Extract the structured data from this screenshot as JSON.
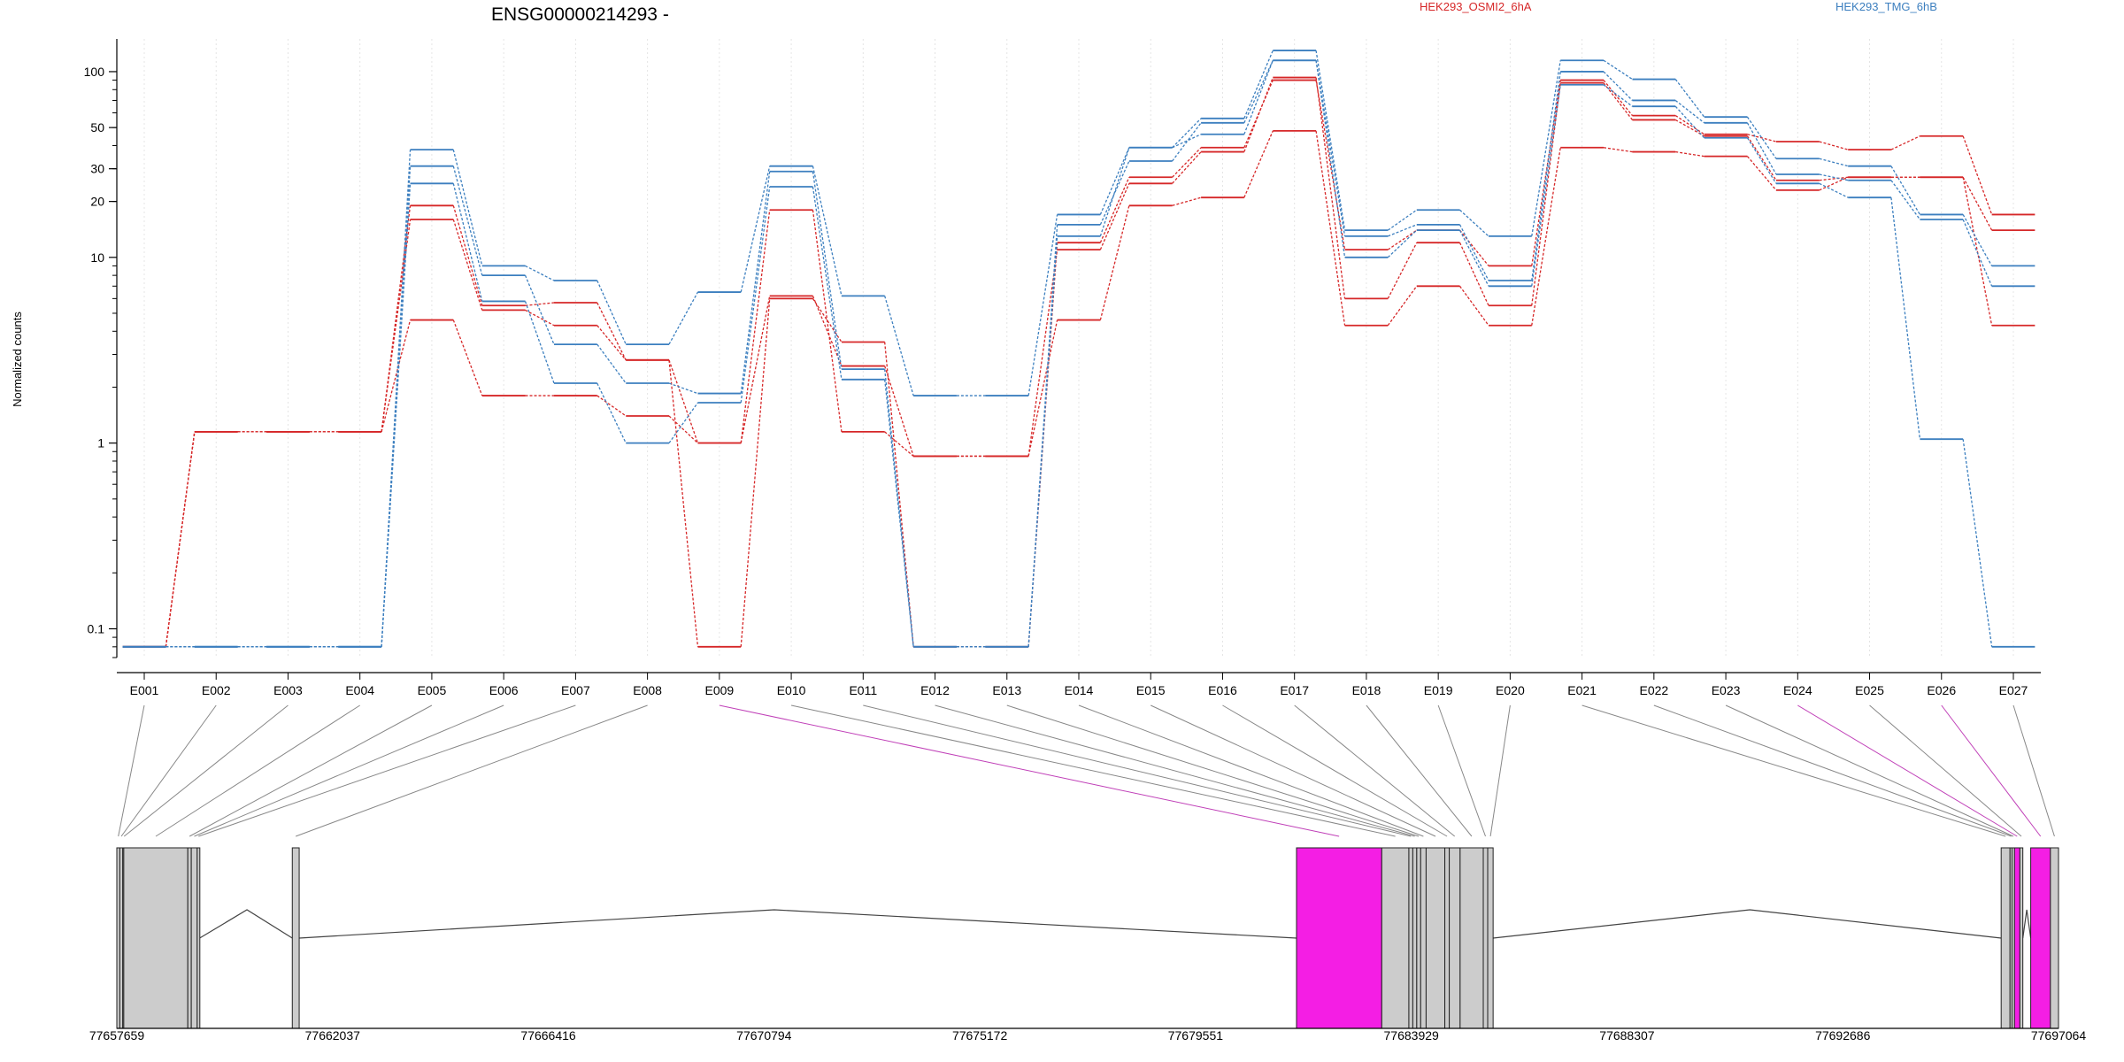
{
  "chart_data": {
    "type": "line",
    "title": "ENSG00000214293 -",
    "ylabel": "Normalized counts",
    "yscale": "log",
    "ylim": [
      0.07,
      150
    ],
    "yticks": [
      0.1,
      1,
      10,
      20,
      30,
      50,
      100
    ],
    "grid": "vertical dotted per exon",
    "legend": [
      {
        "name": "HEK293_OSMI2_6hA",
        "color": "#d62728"
      },
      {
        "name": "HEK293_TMG_6hB",
        "color": "#3c7fbf"
      }
    ],
    "categories": [
      "E001",
      "E002",
      "E003",
      "E004",
      "E005",
      "E006",
      "E007",
      "E008",
      "E009",
      "E010",
      "E011",
      "E012",
      "E013",
      "E014",
      "E015",
      "E016",
      "E017",
      "E018",
      "E019",
      "E020",
      "E021",
      "E022",
      "E023",
      "E024",
      "E025",
      "E026",
      "E027"
    ],
    "series": [
      {
        "group": "HEK293_OSMI2_6hA",
        "color": "#d62728",
        "values": [
          0.08,
          1.15,
          1.15,
          1.15,
          19,
          5.5,
          5.7,
          2.8,
          0.08,
          6,
          3.5,
          0.08,
          0.08,
          12,
          27,
          39,
          90,
          11,
          14,
          9,
          90,
          58,
          46,
          42,
          38,
          45,
          17
        ]
      },
      {
        "group": "HEK293_OSMI2_6hA",
        "color": "#d62728",
        "values": [
          0.08,
          1.15,
          1.15,
          1.15,
          16,
          5.2,
          4.3,
          2.8,
          1.0,
          6.2,
          2.6,
          0.85,
          0.85,
          11,
          25,
          37,
          93,
          6,
          12,
          5.5,
          87,
          55,
          45,
          26,
          27,
          27,
          14
        ]
      },
      {
        "group": "HEK293_OSMI2_6hA",
        "color": "#d62728",
        "values": [
          0.08,
          1.15,
          1.15,
          1.15,
          4.6,
          1.8,
          1.8,
          1.4,
          1.0,
          18,
          1.15,
          0.85,
          0.85,
          4.6,
          19,
          21,
          48,
          4.3,
          7,
          4.3,
          39,
          37,
          35,
          23,
          27,
          27,
          4.3
        ]
      },
      {
        "group": "HEK293_TMG_6hB",
        "color": "#3c7fbf",
        "values": [
          0.08,
          0.08,
          0.08,
          0.08,
          38,
          9,
          7.5,
          3.4,
          6.5,
          31,
          6.2,
          1.8,
          1.8,
          17,
          39,
          56,
          130,
          14,
          18,
          13,
          115,
          91,
          57,
          34,
          31,
          17,
          9
        ]
      },
      {
        "group": "HEK293_TMG_6hB",
        "color": "#3c7fbf",
        "values": [
          0.08,
          0.08,
          0.08,
          0.08,
          31,
          8,
          3.4,
          2.1,
          1.85,
          29,
          2.5,
          0.08,
          0.08,
          15,
          33,
          53,
          115,
          13,
          15,
          7.5,
          100,
          70,
          53,
          28,
          26,
          16,
          7
        ]
      },
      {
        "group": "HEK293_TMG_6hB",
        "color": "#3c7fbf",
        "values": [
          0.08,
          0.08,
          0.08,
          0.08,
          25,
          5.8,
          2.1,
          1.0,
          1.65,
          24,
          2.2,
          0.08,
          0.08,
          13,
          39,
          46,
          115,
          10,
          14,
          7,
          85,
          65,
          44,
          25,
          21,
          1.05,
          0.08
        ]
      }
    ],
    "gene_model": {
      "coordinate_ticks": [
        "77657659",
        "77662037",
        "77666416",
        "77670794",
        "77675172",
        "77679551",
        "77683929",
        "77688307",
        "77692686",
        "77697064"
      ],
      "coord_range": [
        77657659,
        77697064
      ],
      "exons": [
        {
          "id": "E001",
          "start": 77657659,
          "end": 77657720,
          "highlight": false
        },
        {
          "id": "E002",
          "start": 77657720,
          "end": 77657780,
          "highlight": false
        },
        {
          "id": "E003",
          "start": 77657780,
          "end": 77657800,
          "highlight": false
        },
        {
          "id": "E004",
          "start": 77657800,
          "end": 77659100,
          "highlight": false
        },
        {
          "id": "E005",
          "start": 77659100,
          "end": 77659170,
          "highlight": false
        },
        {
          "id": "E006",
          "start": 77659170,
          "end": 77659290,
          "highlight": false
        },
        {
          "id": "E007",
          "start": 77659290,
          "end": 77659340,
          "highlight": false
        },
        {
          "id": "E008",
          "start": 77661220,
          "end": 77661360,
          "highlight": false
        },
        {
          "id": "E009",
          "start": 77681600,
          "end": 77683330,
          "highlight": true
        },
        {
          "id": "E010",
          "start": 77683330,
          "end": 77683880,
          "highlight": false
        },
        {
          "id": "E011",
          "start": 77683880,
          "end": 77683960,
          "highlight": false
        },
        {
          "id": "E012",
          "start": 77683960,
          "end": 77684040,
          "highlight": false
        },
        {
          "id": "E013",
          "start": 77684040,
          "end": 77684120,
          "highlight": false
        },
        {
          "id": "E014",
          "start": 77684120,
          "end": 77684230,
          "highlight": false
        },
        {
          "id": "E015",
          "start": 77684230,
          "end": 77684610,
          "highlight": false
        },
        {
          "id": "E016",
          "start": 77684610,
          "end": 77684700,
          "highlight": false
        },
        {
          "id": "E017",
          "start": 77684700,
          "end": 77684920,
          "highlight": false
        },
        {
          "id": "E018",
          "start": 77684920,
          "end": 77685390,
          "highlight": false
        },
        {
          "id": "E019",
          "start": 77685390,
          "end": 77685480,
          "highlight": false
        },
        {
          "id": "E020",
          "start": 77685480,
          "end": 77685590,
          "highlight": false
        },
        {
          "id": "E021",
          "start": 77695900,
          "end": 77696080,
          "highlight": false
        },
        {
          "id": "E022",
          "start": 77696080,
          "end": 77696120,
          "highlight": false
        },
        {
          "id": "E023",
          "start": 77696120,
          "end": 77696170,
          "highlight": false
        },
        {
          "id": "E024",
          "start": 77696170,
          "end": 77696280,
          "highlight": true
        },
        {
          "id": "E025",
          "start": 77696280,
          "end": 77696340,
          "highlight": false
        },
        {
          "id": "E026",
          "start": 77696500,
          "end": 77696900,
          "highlight": true
        },
        {
          "id": "E027",
          "start": 77696900,
          "end": 77697064,
          "highlight": false
        }
      ],
      "introns": [
        {
          "from": 77659340,
          "to": 77661220,
          "peak": 77660300
        },
        {
          "from": 77661360,
          "to": 77681600,
          "peak": 77671000
        },
        {
          "from": 77685590,
          "to": 77695900,
          "peak": 77690800
        },
        {
          "from": 77696340,
          "to": 77696500,
          "peak": 77696420
        }
      ]
    }
  }
}
